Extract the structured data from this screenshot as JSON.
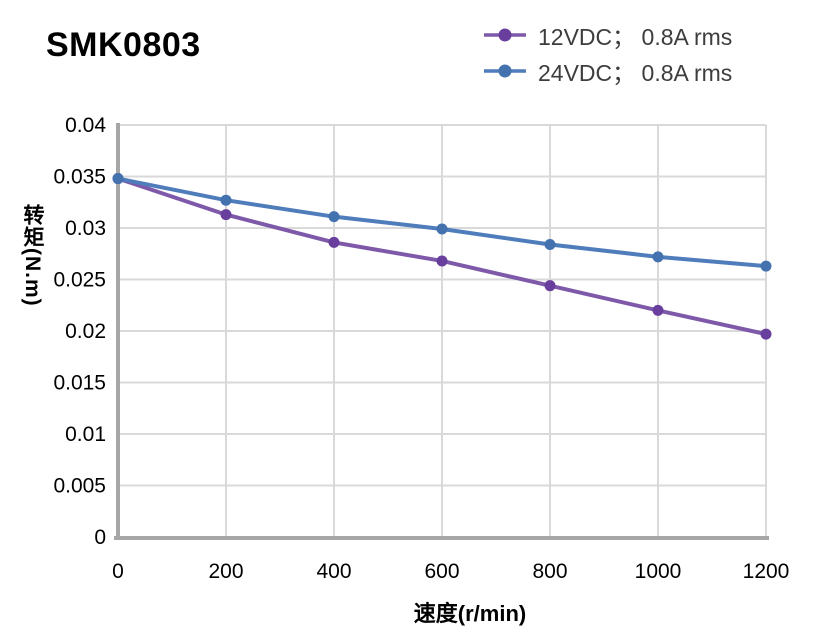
{
  "title": "SMK0803",
  "legend": {
    "items": [
      {
        "label": "12VDC； 0.8A rms",
        "line_color": "#7e59a9",
        "marker_color": "#693f9e"
      },
      {
        "label": "24VDC； 0.8A rms",
        "line_color": "#4f7cbb",
        "marker_color": "#4372ae"
      }
    ]
  },
  "axes": {
    "xlabel": "速度(r/min)",
    "ylabel": "转矩(N.m)"
  },
  "colors": {
    "gridline": "#d9d9d9",
    "axis_line": "#a6a6a6",
    "tick_text": "#000000"
  },
  "chart_data": {
    "type": "line",
    "title": "SMK0803",
    "xlabel": "速度(r/min)",
    "ylabel": "转矩(N.m)",
    "x": [
      0,
      200,
      400,
      600,
      800,
      1000,
      1200
    ],
    "series": [
      {
        "name": "12VDC； 0.8A rms",
        "line_color": "#7e59a9",
        "marker_color": "#693f9e",
        "values": [
          0.0348,
          0.0313,
          0.0286,
          0.0268,
          0.0244,
          0.022,
          0.0197
        ]
      },
      {
        "name": "24VDC； 0.8A rms",
        "line_color": "#4f7cbb",
        "marker_color": "#4372ae",
        "values": [
          0.0348,
          0.0327,
          0.0311,
          0.0299,
          0.0284,
          0.0272,
          0.0263
        ]
      }
    ],
    "xlim": [
      0,
      1200
    ],
    "ylim": [
      0,
      0.04
    ],
    "x_ticks": [
      0,
      200,
      400,
      600,
      800,
      1000,
      1200
    ],
    "y_ticks": [
      0,
      0.005,
      0.01,
      0.015,
      0.02,
      0.025,
      0.03,
      0.035,
      0.04
    ],
    "grid": true,
    "legend_position": "top-right"
  }
}
